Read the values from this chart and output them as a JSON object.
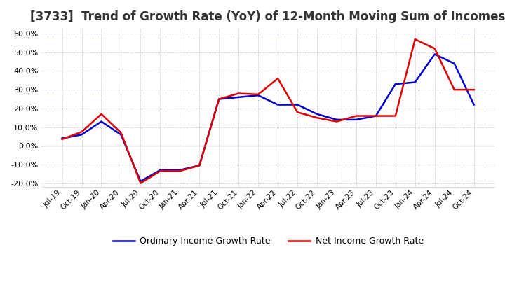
{
  "title": "[3733]  Trend of Growth Rate (YoY) of 12-Month Moving Sum of Incomes",
  "title_fontsize": 12,
  "ylim": [
    -22.0,
    63.0
  ],
  "yticks": [
    -20.0,
    -10.0,
    0.0,
    10.0,
    20.0,
    30.0,
    40.0,
    50.0,
    60.0
  ],
  "background_color": "#ffffff",
  "grid_color": "#aaaacc",
  "ordinary_color": "#0000cc",
  "net_color": "#dd0000",
  "x_labels": [
    "Jul-19",
    "Oct-19",
    "Jan-20",
    "Apr-20",
    "Jul-20",
    "Oct-20",
    "Jan-21",
    "Apr-21",
    "Jul-21",
    "Oct-21",
    "Jan-22",
    "Apr-22",
    "Jul-22",
    "Oct-22",
    "Jan-23",
    "Apr-23",
    "Jul-23",
    "Oct-23",
    "Jan-24",
    "Apr-24",
    "Jul-24",
    "Oct-24"
  ],
  "ordinary_income_growth": [
    4.0,
    6.0,
    13.0,
    6.0,
    -19.0,
    -13.0,
    -13.0,
    -10.5,
    25.0,
    26.0,
    27.0,
    22.0,
    22.0,
    17.0,
    14.0,
    14.0,
    16.0,
    33.0,
    34.0,
    49.0,
    44.0,
    22.0
  ],
  "net_income_growth": [
    3.5,
    7.5,
    17.0,
    7.0,
    -20.0,
    -13.5,
    -13.5,
    -10.5,
    25.0,
    28.0,
    27.5,
    36.0,
    18.0,
    15.0,
    13.0,
    16.0,
    16.0,
    16.0,
    57.0,
    52.0,
    30.0,
    30.0
  ]
}
